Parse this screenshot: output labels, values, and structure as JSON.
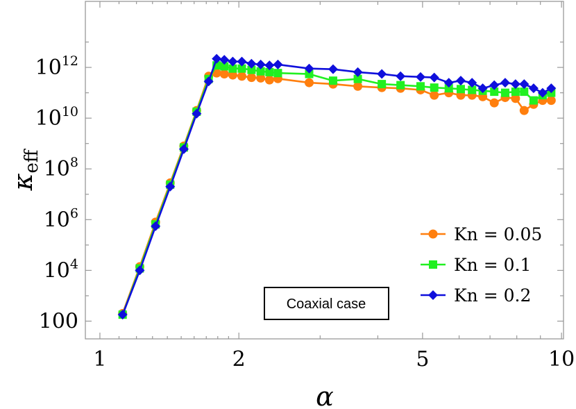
{
  "chart_data": {
    "type": "line",
    "title": "",
    "xlabel": "α",
    "ylabel": "κ",
    "ylabel_sub": "eff",
    "xscale": "log",
    "yscale": "log",
    "xlim": [
      0.93,
      10.1
    ],
    "ylim": [
      20,
      400000000000000
    ],
    "grid": false,
    "legend_position": "bottom-right",
    "x_ticks": [
      {
        "value": 1,
        "label": "1"
      },
      {
        "value": 2,
        "label": "2"
      },
      {
        "value": 5,
        "label": "5"
      },
      {
        "value": 10,
        "label": "10"
      }
    ],
    "y_ticks": [
      {
        "value": 100,
        "base": "100",
        "exp": ""
      },
      {
        "value": 10000,
        "base": "10",
        "exp": "4"
      },
      {
        "value": 1000000,
        "base": "10",
        "exp": "6"
      },
      {
        "value": 100000000,
        "base": "10",
        "exp": "8"
      },
      {
        "value": 10000000000,
        "base": "10",
        "exp": "10"
      },
      {
        "value": 1000000000000,
        "base": "10",
        "exp": "12"
      }
    ],
    "annotation": "Coaxial case",
    "series": [
      {
        "name": "Kn = 0.05",
        "color": "#ff7f0e",
        "marker": "circle",
        "points": [
          [
            1.12,
            200
          ],
          [
            1.22,
            14000
          ],
          [
            1.32,
            800000
          ],
          [
            1.42,
            28000000
          ],
          [
            1.52,
            800000000
          ],
          [
            1.62,
            20000000000
          ],
          [
            1.72,
            450000000000
          ],
          [
            1.79,
            600000000000
          ],
          [
            1.86,
            550000000000
          ],
          [
            1.94,
            500000000000
          ],
          [
            2.03,
            450000000000
          ],
          [
            2.13,
            400000000000
          ],
          [
            2.23,
            380000000000
          ],
          [
            2.33,
            320000000000
          ],
          [
            2.43,
            360000000000
          ],
          [
            2.84,
            250000000000
          ],
          [
            3.2,
            220000000000
          ],
          [
            3.62,
            180000000000
          ],
          [
            4.08,
            160000000000
          ],
          [
            4.48,
            150000000000
          ],
          [
            4.95,
            130000000000
          ],
          [
            5.3,
            80000000000
          ],
          [
            5.7,
            100000000000
          ],
          [
            6.05,
            80000000000
          ],
          [
            6.4,
            80000000000
          ],
          [
            6.75,
            70000000000
          ],
          [
            7.15,
            40000000000
          ],
          [
            7.55,
            65000000000
          ],
          [
            7.95,
            60000000000
          ],
          [
            8.3,
            20000000000
          ],
          [
            8.7,
            35000000000
          ],
          [
            9.1,
            50000000000
          ],
          [
            9.5,
            50000000000
          ]
        ]
      },
      {
        "name": "Kn = 0.1",
        "color": "#21f021",
        "marker": "square",
        "points": [
          [
            1.12,
            180
          ],
          [
            1.22,
            12000
          ],
          [
            1.32,
            650000
          ],
          [
            1.42,
            24000000
          ],
          [
            1.52,
            700000000
          ],
          [
            1.62,
            18000000000
          ],
          [
            1.72,
            350000000000
          ],
          [
            1.79,
            1200000000000
          ],
          [
            1.86,
            1100000000000
          ],
          [
            1.94,
            900000000000
          ],
          [
            2.03,
            900000000000
          ],
          [
            2.13,
            800000000000
          ],
          [
            2.23,
            700000000000
          ],
          [
            2.33,
            650000000000
          ],
          [
            2.43,
            600000000000
          ],
          [
            2.84,
            550000000000
          ],
          [
            3.2,
            300000000000
          ],
          [
            3.62,
            350000000000
          ],
          [
            4.08,
            220000000000
          ],
          [
            4.48,
            200000000000
          ],
          [
            4.95,
            180000000000
          ],
          [
            5.3,
            160000000000
          ],
          [
            5.7,
            150000000000
          ],
          [
            6.05,
            140000000000
          ],
          [
            6.4,
            130000000000
          ],
          [
            6.75,
            120000000000
          ],
          [
            7.15,
            110000000000
          ],
          [
            7.55,
            100000000000
          ],
          [
            7.95,
            110000000000
          ],
          [
            8.3,
            110000000000
          ],
          [
            8.7,
            50000000000
          ],
          [
            9.1,
            80000000000
          ],
          [
            9.5,
            100000000000
          ]
        ]
      },
      {
        "name": "Kn = 0.2",
        "color": "#0f0fdc",
        "marker": "diamond",
        "points": [
          [
            1.12,
            180
          ],
          [
            1.22,
            10000
          ],
          [
            1.32,
            550000
          ],
          [
            1.42,
            20000000
          ],
          [
            1.52,
            600000000
          ],
          [
            1.62,
            15000000000
          ],
          [
            1.72,
            280000000000
          ],
          [
            1.79,
            2200000000000
          ],
          [
            1.86,
            2000000000000
          ],
          [
            1.94,
            1700000000000
          ],
          [
            2.03,
            1700000000000
          ],
          [
            2.13,
            1400000000000
          ],
          [
            2.23,
            1300000000000
          ],
          [
            2.33,
            1200000000000
          ],
          [
            2.43,
            1300000000000
          ],
          [
            2.84,
            900000000000
          ],
          [
            3.2,
            850000000000
          ],
          [
            3.62,
            650000000000
          ],
          [
            4.08,
            550000000000
          ],
          [
            4.48,
            450000000000
          ],
          [
            4.95,
            420000000000
          ],
          [
            5.3,
            400000000000
          ],
          [
            5.7,
            250000000000
          ],
          [
            6.05,
            300000000000
          ],
          [
            6.4,
            250000000000
          ],
          [
            6.75,
            150000000000
          ],
          [
            7.15,
            200000000000
          ],
          [
            7.55,
            250000000000
          ],
          [
            7.95,
            220000000000
          ],
          [
            8.3,
            220000000000
          ],
          [
            8.7,
            150000000000
          ],
          [
            9.1,
            100000000000
          ],
          [
            9.5,
            150000000000
          ]
        ]
      }
    ]
  }
}
